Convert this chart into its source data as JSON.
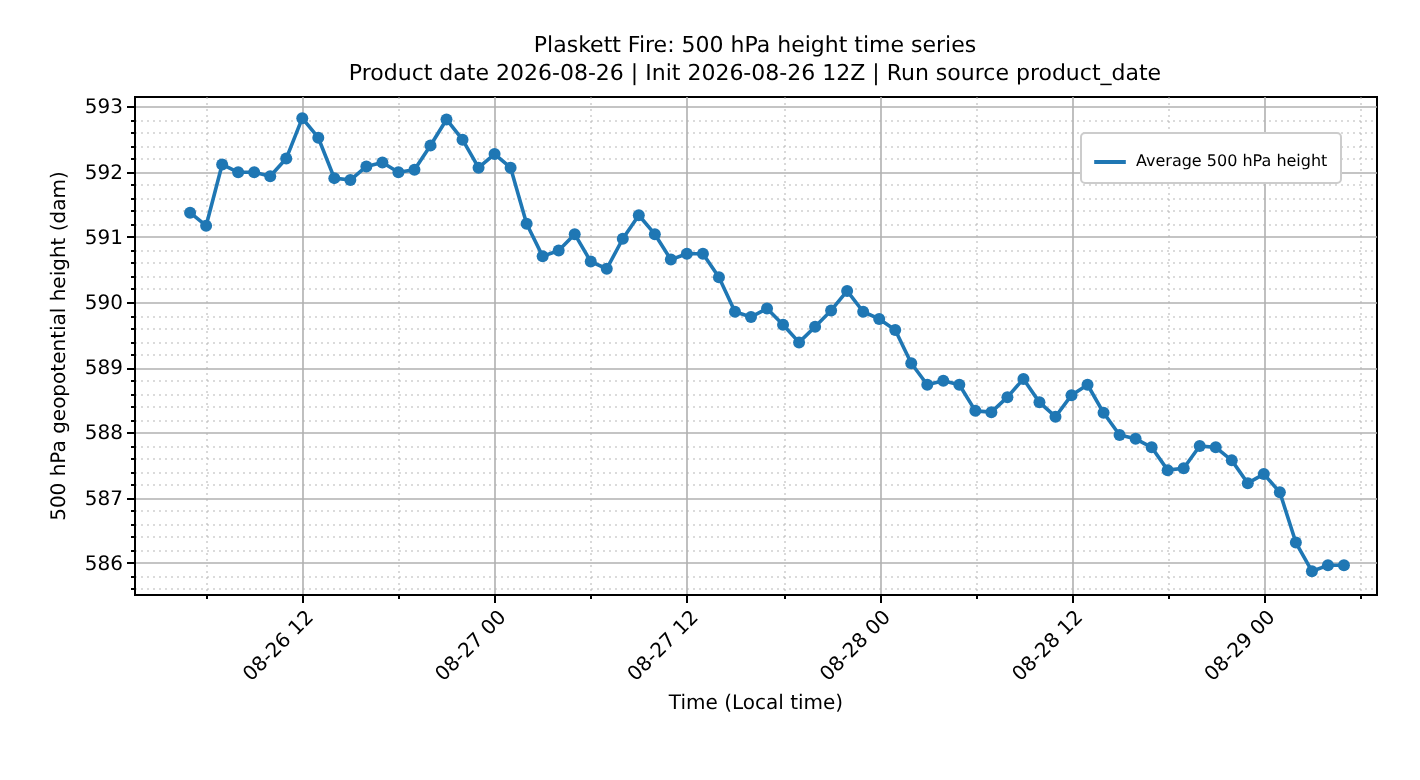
{
  "chart_data": {
    "type": "line",
    "title": "Plaskett Fire: 500 hPa height time series",
    "subtitle": "Product date 2026-08-26 | Init 2026-08-26 12Z | Run source product_date",
    "xlabel": "Time (Local time)",
    "ylabel": "500 hPa geopotential height (dam)",
    "x": [
      "2026-08-26T05:00",
      "2026-08-26T06:00",
      "2026-08-26T07:00",
      "2026-08-26T08:00",
      "2026-08-26T09:00",
      "2026-08-26T10:00",
      "2026-08-26T11:00",
      "2026-08-26T12:00",
      "2026-08-26T13:00",
      "2026-08-26T14:00",
      "2026-08-26T15:00",
      "2026-08-26T16:00",
      "2026-08-26T17:00",
      "2026-08-26T18:00",
      "2026-08-26T19:00",
      "2026-08-26T20:00",
      "2026-08-26T21:00",
      "2026-08-26T22:00",
      "2026-08-26T23:00",
      "2026-08-27T00:00",
      "2026-08-27T01:00",
      "2026-08-27T02:00",
      "2026-08-27T03:00",
      "2026-08-27T04:00",
      "2026-08-27T05:00",
      "2026-08-27T06:00",
      "2026-08-27T07:00",
      "2026-08-27T08:00",
      "2026-08-27T09:00",
      "2026-08-27T10:00",
      "2026-08-27T11:00",
      "2026-08-27T12:00",
      "2026-08-27T13:00",
      "2026-08-27T14:00",
      "2026-08-27T15:00",
      "2026-08-27T16:00",
      "2026-08-27T17:00",
      "2026-08-27T18:00",
      "2026-08-27T19:00",
      "2026-08-27T20:00",
      "2026-08-27T21:00",
      "2026-08-27T22:00",
      "2026-08-27T23:00",
      "2026-08-28T00:00",
      "2026-08-28T01:00",
      "2026-08-28T02:00",
      "2026-08-28T03:00",
      "2026-08-28T04:00",
      "2026-08-28T05:00",
      "2026-08-28T06:00",
      "2026-08-28T07:00",
      "2026-08-28T08:00",
      "2026-08-28T09:00",
      "2026-08-28T10:00",
      "2026-08-28T11:00",
      "2026-08-28T12:00",
      "2026-08-28T13:00",
      "2026-08-28T14:00",
      "2026-08-28T15:00",
      "2026-08-28T16:00",
      "2026-08-28T17:00",
      "2026-08-28T18:00",
      "2026-08-28T19:00",
      "2026-08-28T20:00",
      "2026-08-28T21:00",
      "2026-08-28T22:00",
      "2026-08-28T23:00",
      "2026-08-29T00:00",
      "2026-08-29T01:00",
      "2026-08-29T02:00",
      "2026-08-29T03:00",
      "2026-08-29T04:00",
      "2026-08-29T05:00"
    ],
    "series": [
      {
        "name": "Average 500 hPa height",
        "color": "#1f77b4",
        "values": [
          591.37,
          591.17,
          592.11,
          591.99,
          591.99,
          591.93,
          592.2,
          592.82,
          592.52,
          591.9,
          591.87,
          592.08,
          592.14,
          591.99,
          592.03,
          592.4,
          592.8,
          592.49,
          592.06,
          592.27,
          592.06,
          591.2,
          590.7,
          590.79,
          591.04,
          590.62,
          590.51,
          590.97,
          591.33,
          591.04,
          590.65,
          590.74,
          590.74,
          590.38,
          589.85,
          589.77,
          589.9,
          589.65,
          589.38,
          589.62,
          589.87,
          590.17,
          589.85,
          589.74,
          589.57,
          589.06,
          588.73,
          588.79,
          588.73,
          588.33,
          588.31,
          588.54,
          588.82,
          588.46,
          588.24,
          588.57,
          588.73,
          588.3,
          587.96,
          587.9,
          587.77,
          587.42,
          587.45,
          587.79,
          587.77,
          587.57,
          587.22,
          587.36,
          587.08,
          586.31,
          585.87,
          585.96,
          585.96
        ]
      }
    ],
    "xlim": [
      "2026-08-26T01:30",
      "2026-08-29T07:00"
    ],
    "xticks": [
      {
        "value": "2026-08-26T06:00",
        "label": null
      },
      {
        "value": "2026-08-26T12:00",
        "label": "08-26 12"
      },
      {
        "value": "2026-08-26T18:00",
        "label": null
      },
      {
        "value": "2026-08-27T00:00",
        "label": "08-27 00"
      },
      {
        "value": "2026-08-27T06:00",
        "label": null
      },
      {
        "value": "2026-08-27T12:00",
        "label": "08-27 12"
      },
      {
        "value": "2026-08-27T18:00",
        "label": null
      },
      {
        "value": "2026-08-28T00:00",
        "label": "08-28 00"
      },
      {
        "value": "2026-08-28T06:00",
        "label": null
      },
      {
        "value": "2026-08-28T12:00",
        "label": "08-28 12"
      },
      {
        "value": "2026-08-28T18:00",
        "label": null
      },
      {
        "value": "2026-08-29T00:00",
        "label": "08-29 00"
      },
      {
        "value": "2026-08-29T06:00",
        "label": null
      }
    ],
    "ylim": [
      585.52,
      593.16
    ],
    "yticks": [
      {
        "value": 585.6,
        "label": null
      },
      {
        "value": 585.8,
        "label": null
      },
      586,
      {
        "value": 586.2,
        "label": null
      },
      {
        "value": 586.4,
        "label": null
      },
      {
        "value": 586.6,
        "label": null
      },
      {
        "value": 586.8,
        "label": null
      },
      587,
      {
        "value": 587.2,
        "label": null
      },
      {
        "value": 587.4,
        "label": null
      },
      {
        "value": 587.6,
        "label": null
      },
      {
        "value": 587.8,
        "label": null
      },
      588,
      {
        "value": 588.2,
        "label": null
      },
      {
        "value": 588.4,
        "label": null
      },
      {
        "value": 588.6,
        "label": null
      },
      {
        "value": 588.8,
        "label": null
      },
      589,
      {
        "value": 589.2,
        "label": null
      },
      {
        "value": 589.4,
        "label": null
      },
      {
        "value": 589.6,
        "label": null
      },
      {
        "value": 589.8,
        "label": null
      },
      590,
      {
        "value": 590.2,
        "label": null
      },
      {
        "value": 590.4,
        "label": null
      },
      {
        "value": 590.6,
        "label": null
      },
      {
        "value": 590.8,
        "label": null
      },
      591,
      {
        "value": 591.2,
        "label": null
      },
      {
        "value": 591.4,
        "label": null
      },
      {
        "value": 591.6,
        "label": null
      },
      {
        "value": 591.8,
        "label": null
      },
      592,
      {
        "value": 592.2,
        "label": null
      },
      {
        "value": 592.4,
        "label": null
      },
      {
        "value": 592.6,
        "label": null
      },
      {
        "value": 592.8,
        "label": null
      },
      593
    ],
    "grid": true,
    "legend": "top right",
    "marker": "circle",
    "line_style": "solid"
  }
}
